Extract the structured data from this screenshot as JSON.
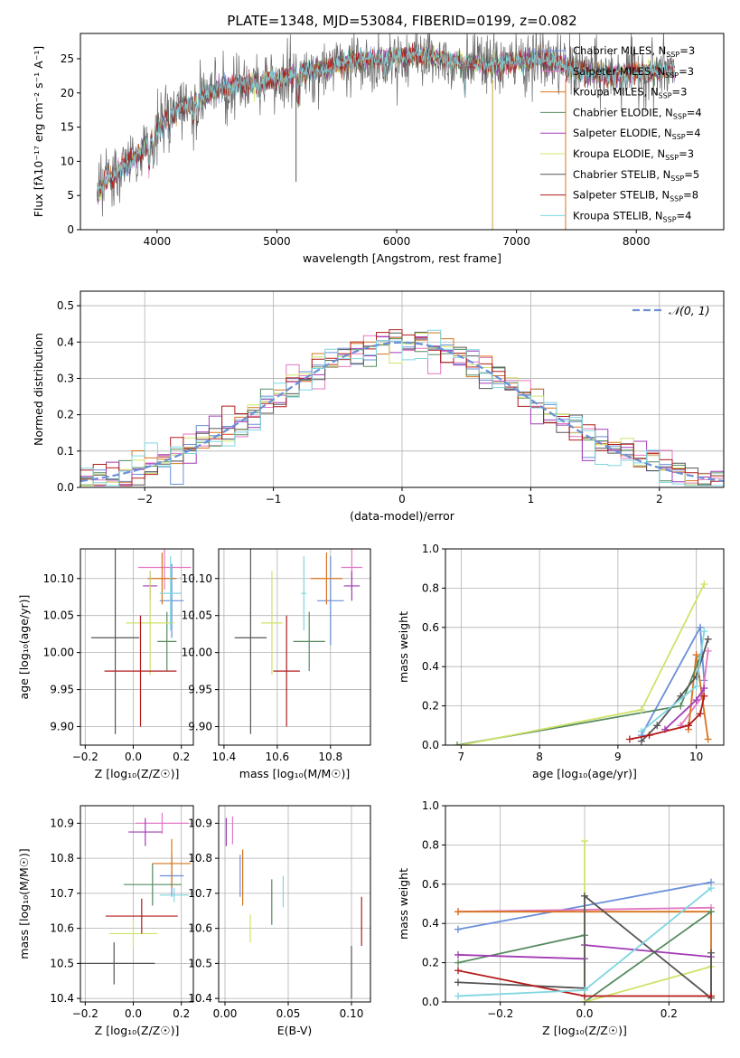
{
  "figure": {
    "title": "PLATE=1348, MJD=53084, FIBERID=0199, z=0.082"
  },
  "palette": [
    "#6a8fd8",
    "#e377c2",
    "#d8731c",
    "#558b5e",
    "#a23bb5",
    "#cfe36a",
    "#555555",
    "#b21b1b",
    "#7fd6e0"
  ],
  "chart_data": [
    {
      "id": "spectrum",
      "type": "line",
      "title": "PLATE=1348, MJD=53084, FIBERID=0199, z=0.082",
      "xlabel": "wavelength [Angstrom, rest frame]",
      "ylabel": "Flux [fλ10⁻¹⁷ erg cm⁻² s⁻¹ A⁻¹]",
      "xlim": [
        3360,
        8730
      ],
      "ylim": [
        0,
        28.7
      ],
      "xticks": [
        4000,
        5000,
        6000,
        7000,
        8000
      ],
      "yticks": [
        0,
        5,
        10,
        15,
        20,
        25
      ],
      "legend_position": "upper-right",
      "continuum_x": [
        3500,
        3600,
        3700,
        3800,
        3900,
        4000,
        4100,
        4200,
        4300,
        4400,
        4600,
        4800,
        5000,
        5200,
        5400,
        5600,
        5800,
        6000,
        6200,
        6400,
        6600,
        6800,
        7000,
        7200,
        7400,
        7600,
        7800,
        8000,
        8300
      ],
      "continuum_y": [
        5.5,
        7.5,
        9.0,
        10.5,
        12.0,
        15.0,
        16.5,
        18.0,
        18.5,
        19.5,
        21.0,
        21.5,
        22.0,
        23.0,
        23.5,
        24.5,
        25.0,
        25.3,
        25.5,
        25.0,
        24.5,
        24.0,
        24.5,
        24.8,
        24.0,
        23.0,
        22.5,
        23.0,
        23.2
      ],
      "series": [
        {
          "name": "Chabrier MILES, N_SSP=3",
          "color": "#6a8fd8"
        },
        {
          "name": "Salpeter MILES, N_SSP=3",
          "color": "#e377c2"
        },
        {
          "name": "Kroupa MILES, N_SSP=3",
          "color": "#d8731c"
        },
        {
          "name": "Chabrier ELODIE, N_SSP=4",
          "color": "#558b5e"
        },
        {
          "name": "Salpeter ELODIE, N_SSP=4",
          "color": "#a23bb5"
        },
        {
          "name": "Kroupa ELODIE, N_SSP=3",
          "color": "#cfe36a"
        },
        {
          "name": "Chabrier STELIB, N_SSP=5",
          "color": "#555555"
        },
        {
          "name": "Salpeter STELIB, N_SSP=8",
          "color": "#b21b1b"
        },
        {
          "name": "Kroupa STELIB, N_SSP=4",
          "color": "#7fd6e0"
        }
      ]
    },
    {
      "id": "residuals",
      "type": "line",
      "xlabel": "(data-model)/error",
      "ylabel": "Normed distribution",
      "xlim": [
        -2.5,
        2.5
      ],
      "ylim": [
        0,
        0.54
      ],
      "xticks": [
        -2,
        -1,
        0,
        1,
        2
      ],
      "yticks": [
        0.0,
        0.1,
        0.2,
        0.3,
        0.4,
        0.5
      ],
      "grid": true,
      "legend": "𝒩(0, 1)",
      "legend_position": "upper-right",
      "bin_width": 0.1
    },
    {
      "id": "age-vs-Z",
      "type": "scatter",
      "xlabel": "Z [log₁₀(Z/Z☉)]",
      "ylabel": "age  [log₁₀(age/yr)]",
      "xlim": [
        -0.22,
        0.25
      ],
      "ylim": [
        9.875,
        10.14
      ],
      "xticks": [
        -0.2,
        0.0,
        0.2
      ],
      "yticks": [
        9.9,
        9.95,
        10.0,
        10.05,
        10.1
      ],
      "grid": true,
      "points": [
        {
          "x": 0.16,
          "y": 10.07,
          "xerr": 0.05,
          "yerr": 0.05
        },
        {
          "x": 0.13,
          "y": 10.115,
          "xerr": 0.11,
          "yerr": 0.03
        },
        {
          "x": 0.12,
          "y": 10.1,
          "xerr": 0.06,
          "yerr": 0.035
        },
        {
          "x": 0.14,
          "y": 10.015,
          "xerr": 0.04,
          "yerr": 0.04
        },
        {
          "x": 0.07,
          "y": 10.09,
          "xerr": 0.03,
          "yerr": 0.02
        },
        {
          "x": 0.07,
          "y": 10.04,
          "xerr": 0.1,
          "yerr": 0.07
        },
        {
          "x": -0.075,
          "y": 10.02,
          "xerr": 0.1,
          "yerr": 0.13
        },
        {
          "x": 0.03,
          "y": 9.975,
          "xerr": 0.15,
          "yerr": 0.075
        },
        {
          "x": 0.155,
          "y": 10.08,
          "xerr": 0.045,
          "yerr": 0.05
        }
      ]
    },
    {
      "id": "age-vs-mass",
      "type": "scatter",
      "xlabel": "mass [log₁₀(M/M☉)]",
      "ylabel": "",
      "xlim": [
        10.38,
        10.95
      ],
      "ylim": [
        9.875,
        10.14
      ],
      "xticks": [
        10.4,
        10.6,
        10.8
      ],
      "yticks": [
        9.9,
        9.95,
        10.0,
        10.05,
        10.1
      ],
      "grid": true,
      "points": [
        {
          "x": 10.8,
          "y": 10.07,
          "xerr": 0.05,
          "yerr": 0.06
        },
        {
          "x": 10.88,
          "y": 10.115,
          "xerr": 0.04,
          "yerr": 0.03
        },
        {
          "x": 10.785,
          "y": 10.1,
          "xerr": 0.06,
          "yerr": 0.035
        },
        {
          "x": 10.72,
          "y": 10.015,
          "xerr": 0.06,
          "yerr": 0.04
        },
        {
          "x": 10.88,
          "y": 10.09,
          "xerr": 0.03,
          "yerr": 0.02
        },
        {
          "x": 10.58,
          "y": 10.04,
          "xerr": 0.04,
          "yerr": 0.07
        },
        {
          "x": 10.5,
          "y": 10.02,
          "xerr": 0.06,
          "yerr": 0.13
        },
        {
          "x": 10.635,
          "y": 9.975,
          "xerr": 0.05,
          "yerr": 0.075
        },
        {
          "x": 10.7,
          "y": 10.08,
          "xerr": 0.01,
          "yerr": 0.05
        }
      ]
    },
    {
      "id": "weight-vs-age",
      "type": "line",
      "xlabel": "age  [log₁₀(age/yr)]",
      "ylabel": "mass weight",
      "xlim": [
        6.8,
        10.35
      ],
      "ylim": [
        0,
        1.0
      ],
      "xticks": [
        7,
        8,
        9,
        10
      ],
      "yticks": [
        0.0,
        0.2,
        0.4,
        0.6,
        0.8,
        1.0
      ],
      "grid": true,
      "series": [
        {
          "x": [
            9.3,
            10.05,
            10.1
          ],
          "y": [
            0.05,
            0.6,
            0.33
          ]
        },
        {
          "x": [
            9.8,
            10.08,
            10.15
          ],
          "y": [
            0.1,
            0.25,
            0.48
          ]
        },
        {
          "x": [
            9.9,
            10.0,
            10.15
          ],
          "y": [
            0.08,
            0.46,
            0.03
          ]
        },
        {
          "x": [
            6.95,
            9.8,
            10.05
          ],
          "y": [
            0.0,
            0.2,
            0.45
          ]
        },
        {
          "x": [
            9.6,
            10.0,
            10.1
          ],
          "y": [
            0.08,
            0.23,
            0.29
          ]
        },
        {
          "x": [
            7.0,
            9.3,
            10.1
          ],
          "y": [
            0.0,
            0.18,
            0.82
          ]
        },
        {
          "x": [
            9.3,
            9.5,
            9.8,
            10.0,
            10.15
          ],
          "y": [
            0.02,
            0.1,
            0.25,
            0.35,
            0.54
          ]
        },
        {
          "x": [
            9.15,
            9.4,
            9.9,
            10.05,
            10.1
          ],
          "y": [
            0.03,
            0.05,
            0.1,
            0.16,
            0.25
          ]
        },
        {
          "x": [
            9.3,
            10.0,
            10.1
          ],
          "y": [
            0.07,
            0.3,
            0.58
          ]
        }
      ]
    },
    {
      "id": "mass-vs-Z",
      "type": "scatter",
      "xlabel": "Z [log₁₀(Z/Z☉)]",
      "ylabel": "mass [log₁₀(M/M☉)]",
      "xlim": [
        -0.22,
        0.25
      ],
      "ylim": [
        10.39,
        10.95
      ],
      "xticks": [
        -0.2,
        0.0,
        0.2
      ],
      "yticks": [
        10.4,
        10.5,
        10.6,
        10.7,
        10.8,
        10.9
      ],
      "grid": true,
      "points": [
        {
          "x": 0.16,
          "y": 10.75,
          "xerr": 0.05,
          "yerr": 0.06
        },
        {
          "x": 0.12,
          "y": 10.9,
          "xerr": 0.11,
          "yerr": 0.03
        },
        {
          "x": 0.16,
          "y": 10.785,
          "xerr": 0.08,
          "yerr": 0.07
        },
        {
          "x": 0.08,
          "y": 10.725,
          "xerr": 0.12,
          "yerr": 0.06
        },
        {
          "x": 0.05,
          "y": 10.875,
          "xerr": 0.07,
          "yerr": 0.04
        },
        {
          "x": 0.0,
          "y": 10.585,
          "xerr": 0.1,
          "yerr": 0.04
        },
        {
          "x": -0.08,
          "y": 10.5,
          "xerr": 0.17,
          "yerr": 0.06
        },
        {
          "x": 0.035,
          "y": 10.635,
          "xerr": 0.15,
          "yerr": 0.05
        },
        {
          "x": 0.17,
          "y": 10.695,
          "xerr": 0.06,
          "yerr": 0.02
        }
      ]
    },
    {
      "id": "mass-vs-EBV",
      "type": "scatter",
      "xlabel": "E(B-V)",
      "ylabel": "",
      "xlim": [
        -0.005,
        0.115
      ],
      "ylim": [
        10.39,
        10.95
      ],
      "xticks": [
        0.0,
        0.05,
        0.1
      ],
      "yticks": [
        10.4,
        10.5,
        10.6,
        10.7,
        10.8,
        10.9
      ],
      "grid": true,
      "points": [
        {
          "x": 0.012,
          "y": 10.75,
          "xerr": 0,
          "yerr": 0.06
        },
        {
          "x": 0.006,
          "y": 10.88,
          "xerr": 0,
          "yerr": 0.04
        },
        {
          "x": 0.014,
          "y": 10.745,
          "xerr": 0,
          "yerr": 0.08
        },
        {
          "x": 0.037,
          "y": 10.675,
          "xerr": 0,
          "yerr": 0.065
        },
        {
          "x": 0.001,
          "y": 10.875,
          "xerr": 0,
          "yerr": 0.04
        },
        {
          "x": 0.02,
          "y": 10.6,
          "xerr": 0,
          "yerr": 0.04
        },
        {
          "x": 0.1,
          "y": 10.475,
          "xerr": 0,
          "yerr": 0.075
        },
        {
          "x": 0.108,
          "y": 10.62,
          "xerr": 0,
          "yerr": 0.07
        },
        {
          "x": 0.046,
          "y": 10.705,
          "xerr": 0,
          "yerr": 0.045
        }
      ]
    },
    {
      "id": "weight-vs-Z",
      "type": "line",
      "xlabel": "Z [log₁₀(Z/Z☉)]",
      "ylabel": "mass weight",
      "xlim": [
        -0.33,
        0.33
      ],
      "ylim": [
        0,
        1.0
      ],
      "xticks": [
        -0.2,
        0.0,
        0.2
      ],
      "yticks": [
        0.0,
        0.2,
        0.4,
        0.6,
        0.8,
        1.0
      ],
      "grid": true,
      "series": [
        {
          "x": [
            -0.3,
            0.3
          ],
          "y": [
            0.37,
            0.61
          ]
        },
        {
          "x": [
            -0.3,
            0.3
          ],
          "y": [
            0.46,
            0.48
          ]
        },
        {
          "x": [
            -0.3,
            0.3,
            0.3
          ],
          "y": [
            0.46,
            0.46,
            0.03
          ]
        },
        {
          "x": [
            -0.3,
            0.0,
            0.0,
            0.3
          ],
          "y": [
            0.2,
            0.34,
            0.0,
            0.46
          ]
        },
        {
          "x": [
            -0.3,
            0.0,
            0.0,
            0.3
          ],
          "y": [
            0.24,
            0.22,
            0.29,
            0.23
          ]
        },
        {
          "x": [
            0.0,
            0.0,
            0.3
          ],
          "y": [
            0.82,
            0.0,
            0.18
          ]
        },
        {
          "x": [
            -0.3,
            0.0,
            0.0,
            0.3,
            0.3
          ],
          "y": [
            0.1,
            0.07,
            0.54,
            0.02,
            0.25
          ]
        },
        {
          "x": [
            -0.3,
            0.0,
            0.3
          ],
          "y": [
            0.16,
            0.03,
            0.03
          ]
        },
        {
          "x": [
            -0.3,
            0.0,
            0.3
          ],
          "y": [
            0.03,
            0.06,
            0.58
          ]
        }
      ]
    }
  ]
}
